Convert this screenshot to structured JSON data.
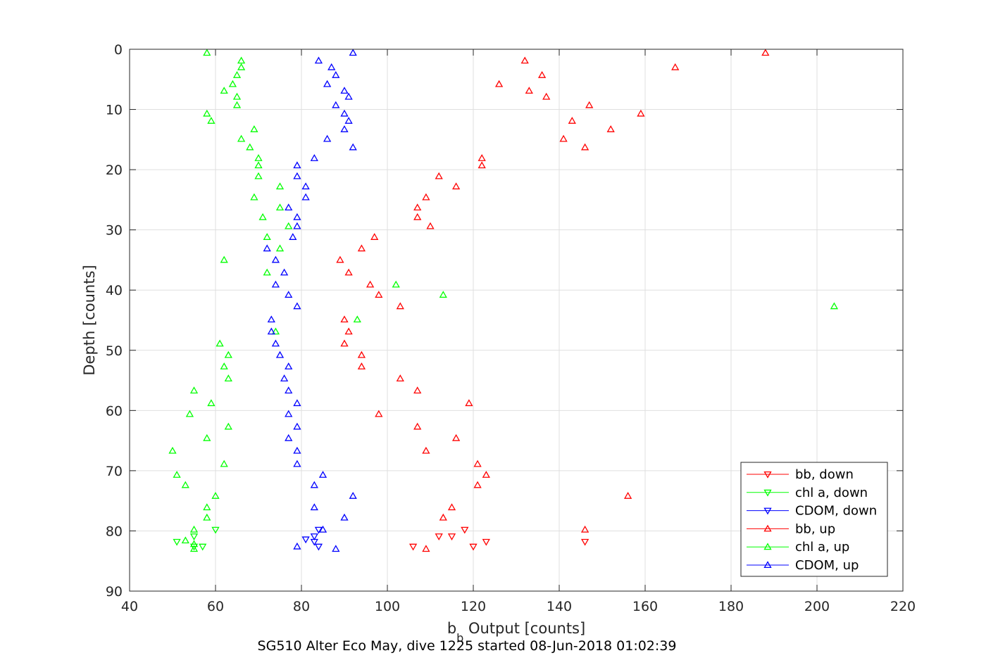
{
  "chart_data": {
    "type": "scatter",
    "title": "SG510 Alter Eco May, dive 1225 started 08-Jun-2018 01:02:39",
    "xlabel_main": "b",
    "xlabel_sub": "b",
    "xlabel_rest": " Output [counts]",
    "ylabel": "Depth [counts]",
    "xlim": [
      40,
      220
    ],
    "ylim": [
      0,
      90
    ],
    "y_reversed": true,
    "grid": true,
    "legend_placement": "bottom-right",
    "xticks": [
      40,
      60,
      80,
      100,
      120,
      140,
      160,
      180,
      200,
      220
    ],
    "yticks": [
      0,
      10,
      20,
      30,
      40,
      50,
      60,
      70,
      80,
      90
    ],
    "series": [
      {
        "name": "bb, down",
        "color": "#ff0000",
        "marker": "triangle-down",
        "points": [
          [
            118,
            79.8
          ],
          [
            115,
            80.9
          ],
          [
            112,
            80.9
          ],
          [
            120,
            82.6
          ],
          [
            123,
            81.8
          ],
          [
            106,
            82.6
          ],
          [
            146,
            81.8
          ]
        ]
      },
      {
        "name": "chl a, down",
        "color": "#00ff00",
        "marker": "triangle-down",
        "points": [
          [
            60,
            79.8
          ],
          [
            55,
            80.9
          ],
          [
            51,
            81.8
          ],
          [
            57,
            82.6
          ],
          [
            55,
            82.6
          ]
        ]
      },
      {
        "name": "CDOM, down",
        "color": "#0000ff",
        "marker": "triangle-down",
        "points": [
          [
            84,
            79.8
          ],
          [
            83,
            80.9
          ],
          [
            81,
            81.4
          ],
          [
            83,
            81.8
          ],
          [
            84,
            82.6
          ]
        ]
      },
      {
        "name": "bb, up",
        "color": "#ff0000",
        "marker": "triangle-up",
        "points": [
          [
            188,
            0.6
          ],
          [
            132,
            1.9
          ],
          [
            167,
            3.0
          ],
          [
            136,
            4.3
          ],
          [
            126,
            5.8
          ],
          [
            133,
            6.9
          ],
          [
            137,
            7.9
          ],
          [
            147,
            9.3
          ],
          [
            159,
            10.7
          ],
          [
            143,
            11.9
          ],
          [
            152,
            13.3
          ],
          [
            141,
            14.9
          ],
          [
            146,
            16.3
          ],
          [
            122,
            18.1
          ],
          [
            122,
            19.3
          ],
          [
            112,
            21.1
          ],
          [
            116,
            22.8
          ],
          [
            109,
            24.6
          ],
          [
            107,
            26.3
          ],
          [
            107,
            27.9
          ],
          [
            110,
            29.4
          ],
          [
            97,
            31.2
          ],
          [
            94,
            33.1
          ],
          [
            89,
            35.0
          ],
          [
            91,
            37.1
          ],
          [
            96,
            39.1
          ],
          [
            98,
            40.8
          ],
          [
            103,
            42.7
          ],
          [
            90,
            44.9
          ],
          [
            91,
            46.9
          ],
          [
            90,
            48.9
          ],
          [
            94,
            50.8
          ],
          [
            94,
            52.7
          ],
          [
            103,
            54.7
          ],
          [
            107,
            56.7
          ],
          [
            119,
            58.8
          ],
          [
            98,
            60.6
          ],
          [
            107,
            62.7
          ],
          [
            116,
            64.6
          ],
          [
            109,
            66.7
          ],
          [
            121,
            68.9
          ],
          [
            123,
            70.7
          ],
          [
            121,
            72.4
          ],
          [
            156,
            74.2
          ],
          [
            115,
            76.1
          ],
          [
            113,
            77.8
          ],
          [
            146,
            79.8
          ],
          [
            109,
            83.0
          ]
        ]
      },
      {
        "name": "chl a, up",
        "color": "#00ff00",
        "marker": "triangle-up",
        "points": [
          [
            58,
            0.6
          ],
          [
            66,
            1.9
          ],
          [
            66,
            3.0
          ],
          [
            65,
            4.3
          ],
          [
            64,
            5.8
          ],
          [
            62,
            6.9
          ],
          [
            65,
            7.9
          ],
          [
            65,
            9.3
          ],
          [
            58,
            10.7
          ],
          [
            59,
            11.9
          ],
          [
            69,
            13.3
          ],
          [
            66,
            14.9
          ],
          [
            68,
            16.3
          ],
          [
            70,
            18.1
          ],
          [
            70,
            19.3
          ],
          [
            70,
            21.1
          ],
          [
            75,
            22.8
          ],
          [
            69,
            24.6
          ],
          [
            75,
            26.3
          ],
          [
            71,
            27.9
          ],
          [
            77,
            29.4
          ],
          [
            72,
            31.2
          ],
          [
            75,
            33.1
          ],
          [
            62,
            35.0
          ],
          [
            72,
            37.1
          ],
          [
            102,
            39.1
          ],
          [
            113,
            40.8
          ],
          [
            204,
            42.7
          ],
          [
            93,
            44.9
          ],
          [
            74,
            46.9
          ],
          [
            61,
            48.9
          ],
          [
            63,
            50.8
          ],
          [
            62,
            52.7
          ],
          [
            63,
            54.7
          ],
          [
            55,
            56.7
          ],
          [
            59,
            58.8
          ],
          [
            54,
            60.6
          ],
          [
            63,
            62.7
          ],
          [
            58,
            64.6
          ],
          [
            50,
            66.7
          ],
          [
            62,
            68.9
          ],
          [
            51,
            70.7
          ],
          [
            53,
            72.4
          ],
          [
            60,
            74.2
          ],
          [
            58,
            76.1
          ],
          [
            58,
            77.8
          ],
          [
            55,
            79.8
          ],
          [
            53,
            81.6
          ],
          [
            55,
            82.2
          ],
          [
            55,
            83.0
          ]
        ]
      },
      {
        "name": "CDOM, up",
        "color": "#0000ff",
        "marker": "triangle-up",
        "points": [
          [
            92,
            0.6
          ],
          [
            84,
            1.9
          ],
          [
            87,
            3.0
          ],
          [
            88,
            4.3
          ],
          [
            86,
            5.8
          ],
          [
            90,
            6.9
          ],
          [
            91,
            7.9
          ],
          [
            88,
            9.3
          ],
          [
            90,
            10.7
          ],
          [
            91,
            11.9
          ],
          [
            90,
            13.3
          ],
          [
            86,
            14.9
          ],
          [
            92,
            16.3
          ],
          [
            83,
            18.1
          ],
          [
            79,
            19.3
          ],
          [
            79,
            21.1
          ],
          [
            81,
            22.8
          ],
          [
            81,
            24.6
          ],
          [
            77,
            26.3
          ],
          [
            79,
            27.9
          ],
          [
            79,
            29.4
          ],
          [
            78,
            31.2
          ],
          [
            72,
            33.1
          ],
          [
            74,
            35.0
          ],
          [
            76,
            37.1
          ],
          [
            74,
            39.1
          ],
          [
            77,
            40.8
          ],
          [
            79,
            42.7
          ],
          [
            73,
            44.9
          ],
          [
            73,
            46.9
          ],
          [
            74,
            48.9
          ],
          [
            75,
            50.8
          ],
          [
            77,
            52.7
          ],
          [
            76,
            54.7
          ],
          [
            77,
            56.7
          ],
          [
            79,
            58.8
          ],
          [
            77,
            60.6
          ],
          [
            79,
            62.7
          ],
          [
            77,
            64.6
          ],
          [
            79,
            66.7
          ],
          [
            79,
            68.9
          ],
          [
            85,
            70.7
          ],
          [
            83,
            72.4
          ],
          [
            92,
            74.2
          ],
          [
            83,
            76.1
          ],
          [
            90,
            77.8
          ],
          [
            85,
            79.8
          ],
          [
            79,
            82.6
          ],
          [
            88,
            83.0
          ]
        ]
      }
    ]
  }
}
